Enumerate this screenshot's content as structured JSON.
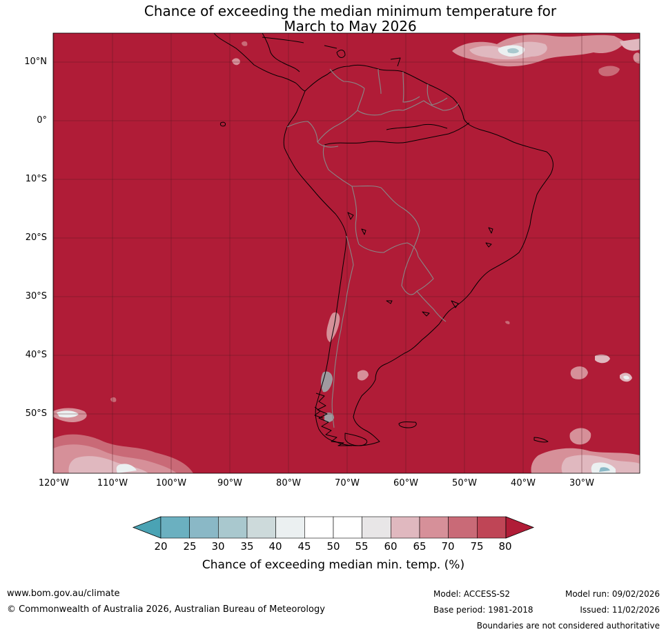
{
  "title": {
    "line1": "Chance of exceeding the median minimum temperature for",
    "line2": "March to May 2026"
  },
  "map": {
    "lat_labels": [
      "10°N",
      "0°",
      "10°S",
      "20°S",
      "30°S",
      "40°S",
      "50°S"
    ],
    "lon_labels": [
      "120°W",
      "110°W",
      "100°W",
      "90°W",
      "80°W",
      "70°W",
      "60°W",
      "50°W",
      "40°W",
      "30°W"
    ],
    "dominant_category": "80+",
    "colors": {
      "sea_fill": "#b01c37",
      "gridline": "#5a1a22",
      "coastline": "#000000",
      "border": "#888888"
    }
  },
  "colorbar": {
    "ticks": [
      "20",
      "25",
      "30",
      "35",
      "40",
      "45",
      "50",
      "55",
      "60",
      "65",
      "70",
      "75",
      "80"
    ],
    "colors": [
      "#4aa3b4",
      "#6bb0c0",
      "#8ab8c6",
      "#a9c8ce",
      "#cddadb",
      "#ebf0f1",
      "#ffffff",
      "#ffffff",
      "#e8e6e7",
      "#e0b8bf",
      "#d69099",
      "#c96a77",
      "#bf4556",
      "#b01c37"
    ],
    "label": "Chance of exceeding median min. temp. (%)"
  },
  "footer": {
    "website": "www.bom.gov.au/climate",
    "copyright": "© Commonwealth of Australia 2026, Australian Bureau of Meteorology",
    "model": "Model: ACCESS-S2",
    "base_period": "Base period: 1981-2018",
    "model_run": "Model run: 09/02/2026",
    "issued": "Issued: 11/02/2026",
    "disclaimer": "Boundaries are not considered authoritative"
  }
}
